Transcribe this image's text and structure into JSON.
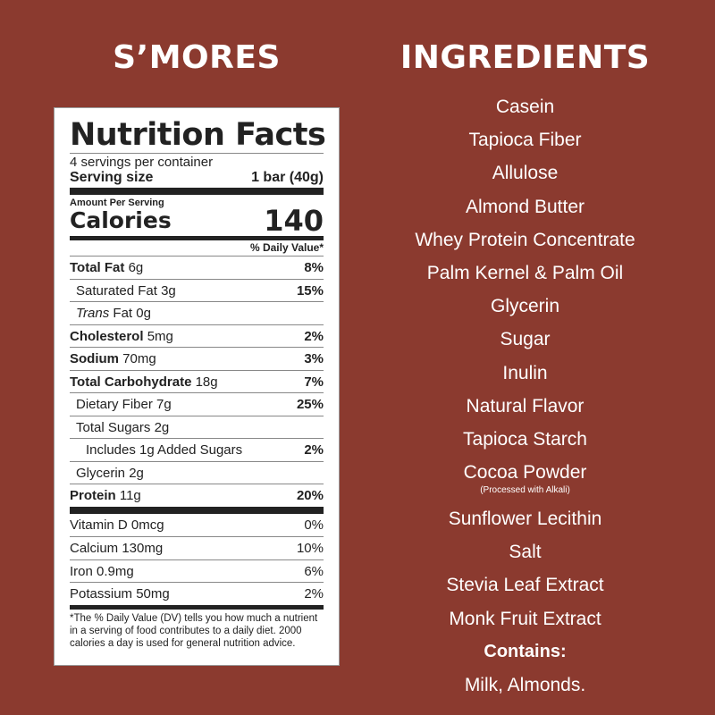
{
  "product_title": "S’MORES",
  "ingredients_title": "INGREDIENTS",
  "nutrition": {
    "title": "Nutrition Facts",
    "servings": "4 servings per container",
    "serving_size_label": "Serving size",
    "serving_size_value": "1 bar (40g)",
    "amount_per_serving": "Amount Per Serving",
    "calories_label": "Calories",
    "calories_value": "140",
    "dv_header": "% Daily Value*",
    "rows": [
      {
        "name": "Total Fat",
        "amount": "6g",
        "dv": "8%"
      },
      {
        "name": "Saturated Fat",
        "amount": "3g",
        "dv": "15%"
      },
      {
        "name": "Trans",
        "name2": " Fat",
        "amount": "0g",
        "dv": ""
      },
      {
        "name": "Cholesterol",
        "amount": "5mg",
        "dv": "2%"
      },
      {
        "name": "Sodium",
        "amount": "70mg",
        "dv": "3%"
      },
      {
        "name": "Total Carbohydrate",
        "amount": "18g",
        "dv": "7%"
      },
      {
        "name": "Dietary Fiber",
        "amount": "7g",
        "dv": "25%"
      },
      {
        "name": "Total Sugars",
        "amount": "2g",
        "dv": ""
      },
      {
        "name": "Includes 1g Added Sugars",
        "amount": "",
        "dv": "2%"
      },
      {
        "name": "Glycerin",
        "amount": "2g",
        "dv": ""
      },
      {
        "name": "Protein",
        "amount": "11g",
        "dv": "20%"
      }
    ],
    "vitamins": [
      {
        "text": "Vitamin D 0mcg",
        "dv": "0%"
      },
      {
        "text": "Calcium 130mg",
        "dv": "10%"
      },
      {
        "text": "Iron 0.9mg",
        "dv": "6%"
      },
      {
        "text": "Potassium 50mg",
        "dv": "2%"
      }
    ],
    "footnote": "*The % Daily Value (DV) tells you how much a nutrient in a serving of food contributes to a daily diet. 2000 calories a day is used for general nutrition advice."
  },
  "ingredients": [
    "Casein",
    "Tapioca Fiber",
    "Allulose",
    "Almond Butter",
    "Whey Protein Concentrate",
    "Palm Kernel & Palm Oil",
    "Glycerin",
    "Sugar",
    "Inulin",
    "Natural Flavor",
    "Tapioca Starch",
    "Cocoa Powder"
  ],
  "cocoa_note": "(Processed with Alkali)",
  "ingredients_after": [
    "Sunflower Lecithin",
    "Salt",
    "Stevia Leaf Extract",
    "Monk Fruit Extract"
  ],
  "contains_label": "Contains:",
  "contains_value": "Milk, Almonds.",
  "colors": {
    "background": "#8b3a2f",
    "label": "#ffffff",
    "text": "#222222"
  }
}
